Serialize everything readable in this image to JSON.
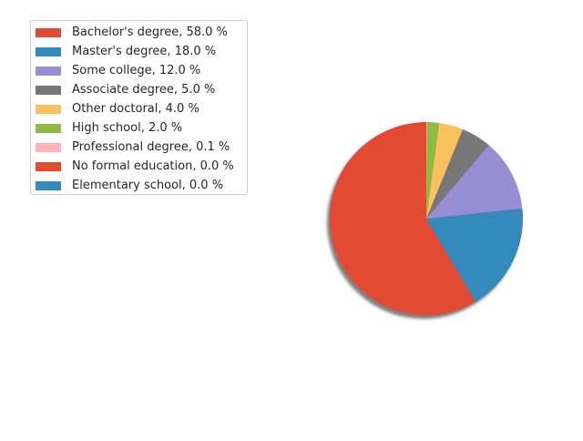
{
  "chart_data": {
    "type": "pie",
    "title": "",
    "start_angle_deg": 90,
    "direction": "counterclockwise",
    "shadow": true,
    "legend_placement": "top-left",
    "slices": [
      {
        "label": "Bachelor's degree, 58.0 %",
        "value": 58.0,
        "color": "#E24A33"
      },
      {
        "label": "Master's degree, 18.0 %",
        "value": 18.0,
        "color": "#348ABD"
      },
      {
        "label": "Some college, 12.0 %",
        "value": 12.0,
        "color": "#988ED5"
      },
      {
        "label": "Associate degree, 5.0 %",
        "value": 5.0,
        "color": "#777777"
      },
      {
        "label": "Other doctoral, 4.0 %",
        "value": 4.0,
        "color": "#FBC15E"
      },
      {
        "label": "High school, 2.0 %",
        "value": 2.0,
        "color": "#8EBA42"
      },
      {
        "label": "Professional degree, 0.1 %",
        "value": 0.1,
        "color": "#FFB5B8"
      },
      {
        "label": "No formal education, 0.0 %",
        "value": 0.0,
        "color": "#E24A33"
      },
      {
        "label": "Elementary school, 0.0 %",
        "value": 0.0,
        "color": "#348ABD"
      }
    ]
  }
}
